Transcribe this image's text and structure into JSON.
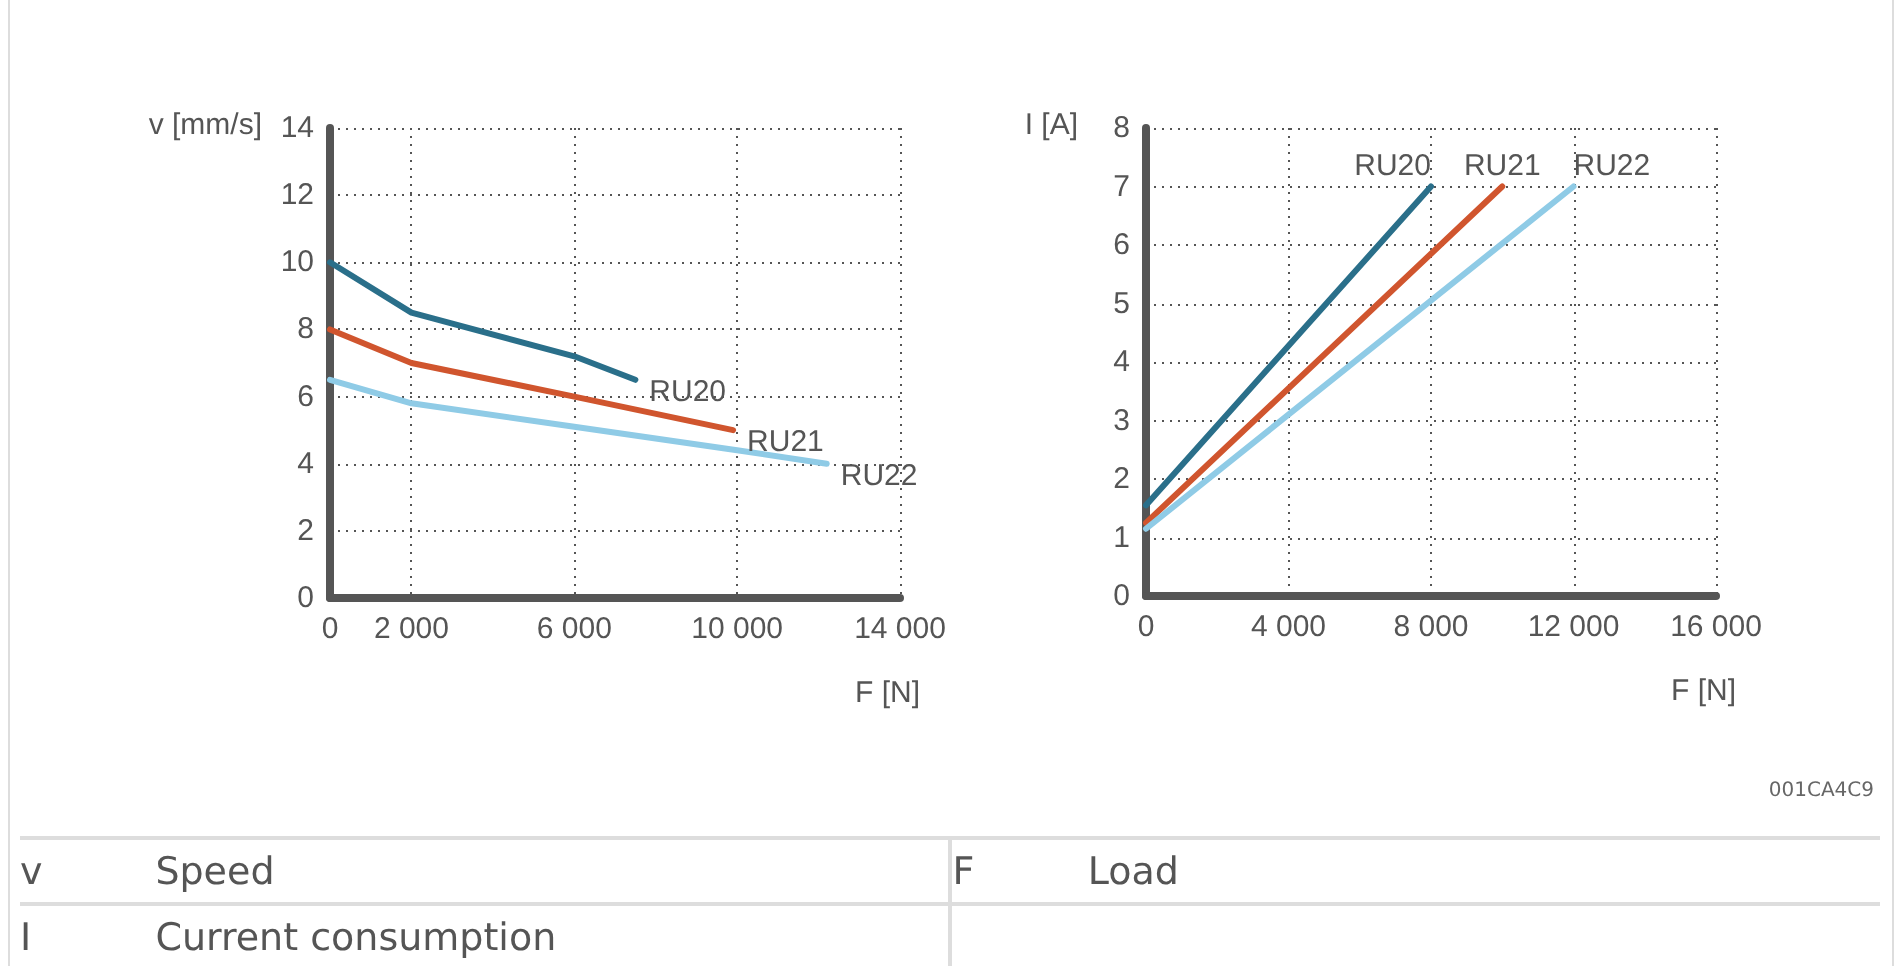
{
  "chart_data": [
    {
      "type": "line",
      "xlabel": "F [N]",
      "ylabel": "v [mm/s]",
      "xlim": [
        0,
        14000
      ],
      "xticks": [
        0,
        {
          "value": 2000,
          "label": "2 000"
        },
        {
          "value": 6000,
          "label": "6 000"
        },
        {
          "value": 10000,
          "label": "10 000"
        },
        {
          "value": 14000,
          "label": "14 000"
        }
      ],
      "ylim": [
        0,
        14
      ],
      "yticks": [
        0,
        2,
        4,
        6,
        8,
        10,
        12,
        14
      ],
      "grid": true,
      "legend": false,
      "marker": "none",
      "line_style": "solid",
      "series": [
        {
          "name": "RU20",
          "color": "#2a6f8a",
          "x": [
            0,
            2000,
            6000,
            7500
          ],
          "values": [
            10,
            8.5,
            7.2,
            6.5
          ]
        },
        {
          "name": "RU21",
          "color": "#d0552e",
          "x": [
            0,
            2000,
            6000,
            9900
          ],
          "values": [
            8,
            7.0,
            6.0,
            5.0
          ]
        },
        {
          "name": "RU22",
          "color": "#8fcbe6",
          "x": [
            0,
            2000,
            6000,
            10000,
            12200
          ],
          "values": [
            6.5,
            5.8,
            5.1,
            4.4,
            4.0
          ]
        }
      ]
    },
    {
      "type": "line",
      "xlabel": "F [N]",
      "ylabel": "I [A]",
      "xlim": [
        0,
        16000
      ],
      "xticks": [
        0,
        {
          "value": 4000,
          "label": "4 000"
        },
        {
          "value": 8000,
          "label": "8 000"
        },
        {
          "value": 12000,
          "label": "12 000"
        },
        {
          "value": 16000,
          "label": "16 000"
        }
      ],
      "ylim": [
        0,
        8
      ],
      "yticks": [
        0,
        1,
        2,
        3,
        4,
        5,
        6,
        7,
        8
      ],
      "grid": true,
      "legend": false,
      "marker": "none",
      "line_style": "solid",
      "series": [
        {
          "name": "RU20",
          "color": "#2a6f8a",
          "x": [
            0,
            8000
          ],
          "values": [
            1.55,
            7
          ]
        },
        {
          "name": "RU21",
          "color": "#d0552e",
          "x": [
            0,
            10000
          ],
          "values": [
            1.25,
            7
          ]
        },
        {
          "name": "RU22",
          "color": "#8fcbe6",
          "x": [
            0,
            12000
          ],
          "values": [
            1.15,
            7
          ]
        }
      ]
    },
    {
      "type": "other",
      "annotations": [
        "001CA4C9",
        "v",
        "Speed",
        "F",
        "Load",
        "I",
        "Current consumption"
      ]
    }
  ]
}
